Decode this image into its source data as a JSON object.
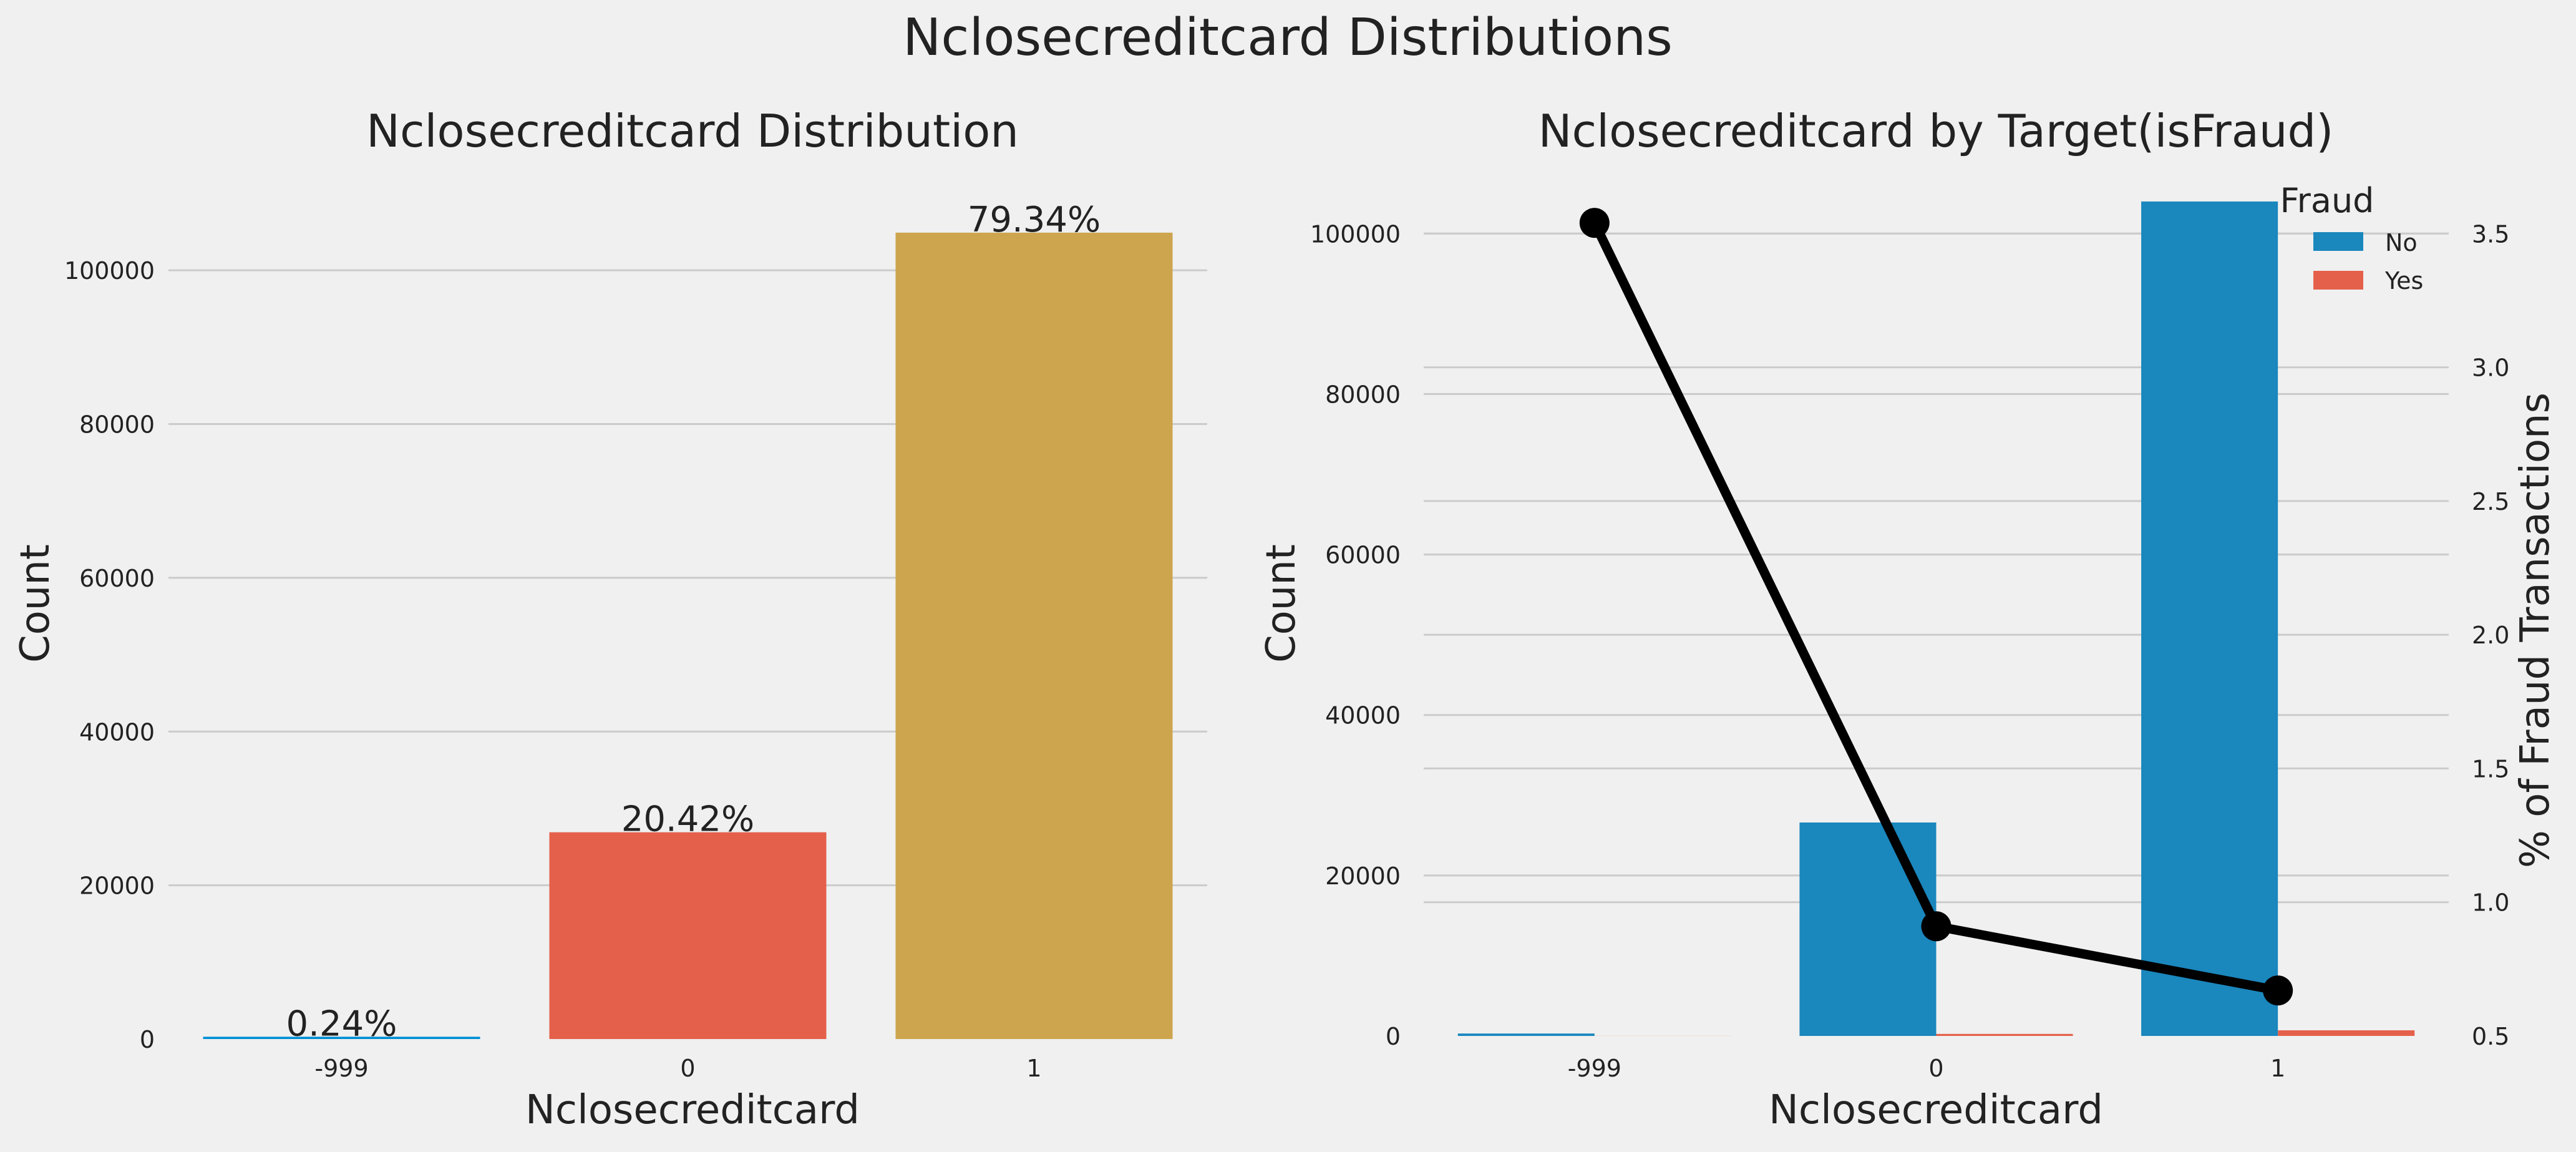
{
  "title": "Nclosecreditcard Distributions",
  "colors": {
    "background": "#f0f0f0",
    "grid": "#cbcbcb",
    "text": "#222222",
    "bar_neg999": "#008fd5",
    "bar_0": "#e5604b",
    "bar_1": "#cda54e",
    "fraud_no": "#1a87bd",
    "fraud_yes": "#e5604b",
    "line": "#000000"
  },
  "chart_data": [
    {
      "type": "bar",
      "title": "Nclosecreditcard Distribution",
      "xlabel": "Nclosecreditcard",
      "ylabel": "Count",
      "categories": [
        "-999",
        "0",
        "1"
      ],
      "values": [
        300,
        26900,
        104900
      ],
      "value_labels": [
        "0.24%",
        "20.42%",
        "79.34%"
      ],
      "ylim": [
        0,
        110000
      ],
      "yticks": [
        0,
        20000,
        40000,
        60000,
        80000,
        100000
      ],
      "grid": true
    },
    {
      "type": "bar",
      "title": "Nclosecreditcard by Target(isFraud)",
      "xlabel": "Nclosecreditcard",
      "ylabel": "Count",
      "ylabel_right": "% of Fraud Transactions",
      "categories": [
        "-999",
        "0",
        "1"
      ],
      "series": [
        {
          "name": "No",
          "values": [
            300,
            26600,
            104000
          ]
        },
        {
          "name": "Yes",
          "values": [
            10,
            250,
            700
          ]
        }
      ],
      "line_series": {
        "values": [
          3.54,
          0.91,
          0.67
        ]
      },
      "ylim": [
        0,
        105000
      ],
      "yticks": [
        0,
        20000,
        40000,
        60000,
        80000,
        100000
      ],
      "ylim_right": [
        0.5,
        3.65
      ],
      "yticks_right": [
        0.5,
        1.0,
        1.5,
        2.0,
        2.5,
        3.0,
        3.5
      ],
      "legend_title": "Fraud",
      "legend_position": "top-right",
      "grid": true
    }
  ]
}
